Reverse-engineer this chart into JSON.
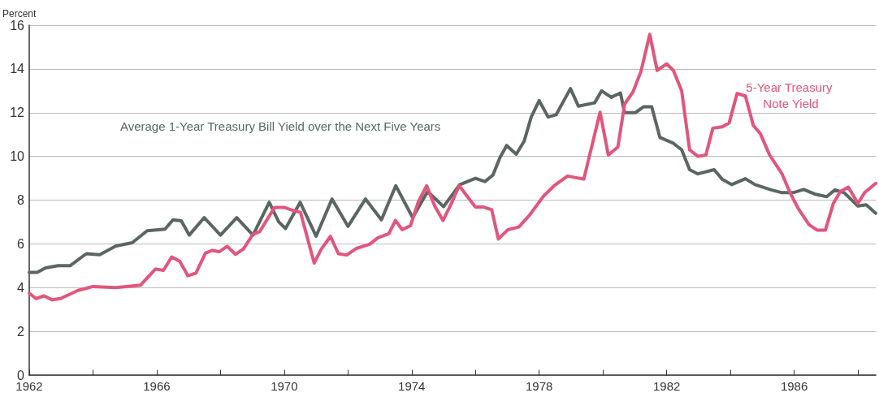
{
  "chart_data": {
    "type": "line",
    "ylabel": "Percent",
    "xlim": [
      1962,
      1988.56
    ],
    "ylim": [
      0,
      16
    ],
    "xticks": [
      1962,
      {
        "value": 1964,
        "label": null
      },
      1966,
      {
        "value": 1968,
        "label": null
      },
      1970,
      {
        "value": 1972,
        "label": null
      },
      1974,
      {
        "value": 1976,
        "label": null
      },
      1978,
      {
        "value": 1980,
        "label": null
      },
      1982,
      {
        "value": 1984,
        "label": null
      },
      1986,
      {
        "value": 1988,
        "label": null
      }
    ],
    "yticks": [
      0,
      2,
      4,
      6,
      8,
      10,
      12,
      14,
      16
    ],
    "grid": "y",
    "series": [
      {
        "name": "Average 1-Year Treasury Bill Yield over the Next Five Years",
        "color": "#5b6662",
        "x": [
          1962.0,
          1962.25,
          1962.51,
          1962.9,
          1963.28,
          1963.79,
          1964.21,
          1964.72,
          1965.23,
          1965.7,
          1966.26,
          1966.51,
          1966.77,
          1967.02,
          1967.49,
          1968.0,
          1968.51,
          1969.02,
          1969.53,
          1969.83,
          1970.04,
          1970.5,
          1971.0,
          1971.5,
          1972.0,
          1972.55,
          1973.05,
          1973.5,
          1974.03,
          1974.5,
          1975.0,
          1975.5,
          1976.0,
          1976.3,
          1976.55,
          1976.77,
          1976.98,
          1977.28,
          1977.53,
          1977.75,
          1978.0,
          1978.28,
          1978.53,
          1978.98,
          1979.23,
          1979.74,
          1979.96,
          1980.26,
          1980.55,
          1980.68,
          1981.02,
          1981.28,
          1981.53,
          1981.79,
          1982.21,
          1982.47,
          1982.72,
          1982.98,
          1983.49,
          1983.74,
          1984.04,
          1984.47,
          1984.77,
          1985.28,
          1985.62,
          1985.96,
          1986.3,
          1986.64,
          1987.02,
          1987.28,
          1987.57,
          1988.0,
          1988.26,
          1988.56
        ],
        "values": [
          4.7,
          4.7,
          4.9,
          5.0,
          5.0,
          5.55,
          5.5,
          5.9,
          6.05,
          6.6,
          6.67,
          7.1,
          7.05,
          6.4,
          7.2,
          6.4,
          7.2,
          6.4,
          7.9,
          7.0,
          6.7,
          7.9,
          6.35,
          8.05,
          6.8,
          8.05,
          7.1,
          8.66,
          7.2,
          8.4,
          7.7,
          8.7,
          9.0,
          8.85,
          9.15,
          9.95,
          10.5,
          10.1,
          10.7,
          11.8,
          12.55,
          11.8,
          11.9,
          13.1,
          12.3,
          12.45,
          13.0,
          12.7,
          12.9,
          12.0,
          12.0,
          12.27,
          12.27,
          10.86,
          10.6,
          10.3,
          9.39,
          9.2,
          9.39,
          8.96,
          8.71,
          8.98,
          8.71,
          8.47,
          8.34,
          8.34,
          8.49,
          8.28,
          8.16,
          8.47,
          8.34,
          7.73,
          7.79,
          7.4
        ]
      },
      {
        "name": "5-Year Treasury Note Yield",
        "color": "#e2557c",
        "x": [
          1962.0,
          1962.21,
          1962.47,
          1962.72,
          1962.98,
          1963.53,
          1964.0,
          1964.72,
          1965.49,
          1965.96,
          1966.21,
          1966.47,
          1966.72,
          1966.98,
          1967.23,
          1967.53,
          1967.74,
          1967.96,
          1968.21,
          1968.47,
          1968.72,
          1969.02,
          1969.23,
          1969.7,
          1970.0,
          1970.21,
          1970.51,
          1970.94,
          1971.15,
          1971.45,
          1971.7,
          1971.96,
          1972.26,
          1972.68,
          1972.94,
          1973.28,
          1973.49,
          1973.7,
          1973.96,
          1974.21,
          1974.47,
          1974.72,
          1974.98,
          1975.23,
          1975.49,
          1976.0,
          1976.26,
          1976.51,
          1976.72,
          1977.02,
          1977.36,
          1977.7,
          1978.13,
          1978.47,
          1978.89,
          1979.4,
          1979.91,
          1980.17,
          1980.47,
          1980.68,
          1980.94,
          1981.19,
          1981.47,
          1981.7,
          1982.0,
          1982.21,
          1982.47,
          1982.72,
          1982.98,
          1983.23,
          1983.45,
          1983.74,
          1983.96,
          1984.21,
          1984.47,
          1984.72,
          1984.94,
          1985.23,
          1985.62,
          1985.87,
          1986.13,
          1986.47,
          1986.72,
          1986.98,
          1987.23,
          1987.45,
          1987.7,
          1988.0,
          1988.21,
          1988.56
        ],
        "values": [
          3.74,
          3.5,
          3.62,
          3.44,
          3.5,
          3.87,
          4.05,
          4.0,
          4.11,
          4.85,
          4.79,
          5.4,
          5.21,
          4.54,
          4.66,
          5.58,
          5.7,
          5.64,
          5.89,
          5.52,
          5.77,
          6.44,
          6.56,
          7.67,
          7.67,
          7.56,
          7.44,
          5.12,
          5.73,
          6.34,
          5.55,
          5.49,
          5.79,
          5.98,
          6.28,
          6.46,
          7.07,
          6.65,
          6.83,
          7.93,
          8.66,
          7.74,
          7.07,
          7.8,
          8.66,
          7.68,
          7.68,
          7.56,
          6.22,
          6.65,
          6.77,
          7.32,
          8.17,
          8.66,
          9.1,
          8.96,
          12.02,
          10.06,
          10.43,
          12.39,
          12.94,
          13.87,
          15.58,
          13.93,
          14.23,
          13.93,
          13.0,
          10.3,
          10.0,
          10.06,
          11.29,
          11.35,
          11.53,
          12.88,
          12.76,
          11.41,
          11.04,
          10.06,
          9.2,
          8.34,
          7.61,
          6.87,
          6.63,
          6.63,
          7.85,
          8.4,
          8.59,
          7.85,
          8.34,
          8.77
        ]
      }
    ]
  }
}
